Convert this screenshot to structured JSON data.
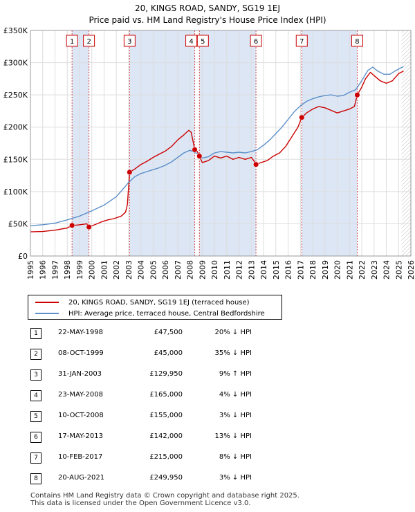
{
  "header": {
    "line1": "20, KINGS ROAD, SANDY, SG19 1EJ",
    "line2": "Price paid vs. HM Land Registry's House Price Index (HPI)"
  },
  "chart_data": {
    "type": "line",
    "title": "Price paid vs. HM Land Registry's House Price Index (HPI)",
    "ylim": [
      0,
      350000
    ],
    "xlim": [
      1995,
      2026
    ],
    "y_ticks": [
      0,
      50000,
      100000,
      150000,
      200000,
      250000,
      300000,
      350000
    ],
    "y_tick_labels": [
      "£0",
      "£50K",
      "£100K",
      "£150K",
      "£200K",
      "£250K",
      "£300K",
      "£350K"
    ],
    "x_ticks": [
      1995,
      1996,
      1997,
      1998,
      1999,
      2000,
      2001,
      2002,
      2003,
      2004,
      2005,
      2006,
      2007,
      2008,
      2009,
      2010,
      2011,
      2012,
      2013,
      2014,
      2015,
      2016,
      2017,
      2018,
      2019,
      2020,
      2021,
      2022,
      2023,
      2024,
      2025,
      2026
    ],
    "colors": {
      "property": "#cc0000",
      "hpi": "#5b8fc9",
      "band": "#dce6f5",
      "grid": "#dddddd",
      "marker_line": "#cc0000"
    },
    "series": [
      {
        "name": "20, KINGS ROAD, SANDY, SG19 1EJ (terraced house)",
        "key": "property",
        "points": [
          [
            1995.0,
            37500
          ],
          [
            1996.0,
            38000
          ],
          [
            1997.0,
            40000
          ],
          [
            1998.0,
            43500
          ],
          [
            1998.39,
            47500
          ],
          [
            1998.8,
            48000
          ],
          [
            1999.2,
            49000
          ],
          [
            1999.6,
            50000
          ],
          [
            1999.77,
            45000
          ],
          [
            2000.3,
            49000
          ],
          [
            2000.8,
            53000
          ],
          [
            2001.3,
            56000
          ],
          [
            2001.8,
            58000
          ],
          [
            2002.4,
            62000
          ],
          [
            2002.75,
            68000
          ],
          [
            2002.9,
            80000
          ],
          [
            2003.08,
            129950
          ],
          [
            2003.5,
            135000
          ],
          [
            2004.0,
            142000
          ],
          [
            2004.5,
            147000
          ],
          [
            2005.0,
            153000
          ],
          [
            2005.5,
            158000
          ],
          [
            2006.0,
            163000
          ],
          [
            2006.5,
            170000
          ],
          [
            2007.0,
            180000
          ],
          [
            2007.5,
            188000
          ],
          [
            2007.9,
            195000
          ],
          [
            2008.1,
            192000
          ],
          [
            2008.39,
            165000
          ],
          [
            2008.6,
            162000
          ],
          [
            2008.77,
            155000
          ],
          [
            2009.0,
            145000
          ],
          [
            2009.5,
            148000
          ],
          [
            2010.0,
            155000
          ],
          [
            2010.5,
            152000
          ],
          [
            2011.0,
            155000
          ],
          [
            2011.5,
            150000
          ],
          [
            2012.0,
            153000
          ],
          [
            2012.5,
            150000
          ],
          [
            2013.0,
            153000
          ],
          [
            2013.2,
            148000
          ],
          [
            2013.38,
            142000
          ],
          [
            2013.8,
            145000
          ],
          [
            2014.3,
            148000
          ],
          [
            2014.8,
            155000
          ],
          [
            2015.3,
            160000
          ],
          [
            2015.8,
            170000
          ],
          [
            2016.3,
            185000
          ],
          [
            2016.8,
            200000
          ],
          [
            2017.11,
            215000
          ],
          [
            2017.5,
            222000
          ],
          [
            2018.0,
            228000
          ],
          [
            2018.5,
            232000
          ],
          [
            2019.0,
            230000
          ],
          [
            2019.5,
            226000
          ],
          [
            2020.0,
            222000
          ],
          [
            2020.5,
            225000
          ],
          [
            2021.0,
            228000
          ],
          [
            2021.4,
            232000
          ],
          [
            2021.63,
            249950
          ],
          [
            2022.0,
            262000
          ],
          [
            2022.3,
            275000
          ],
          [
            2022.7,
            285000
          ],
          [
            2023.0,
            280000
          ],
          [
            2023.5,
            272000
          ],
          [
            2024.0,
            268000
          ],
          [
            2024.5,
            272000
          ],
          [
            2025.0,
            283000
          ],
          [
            2025.4,
            287000
          ]
        ]
      },
      {
        "name": "HPI: Average price, terraced house, Central Bedfordshire",
        "key": "hpi",
        "points": [
          [
            1995.0,
            47000
          ],
          [
            1996.0,
            48500
          ],
          [
            1997.0,
            51000
          ],
          [
            1998.0,
            56000
          ],
          [
            1999.0,
            62000
          ],
          [
            2000.0,
            70000
          ],
          [
            2001.0,
            79000
          ],
          [
            2002.0,
            92000
          ],
          [
            2002.5,
            103000
          ],
          [
            2003.0,
            114000
          ],
          [
            2003.5,
            123000
          ],
          [
            2004.0,
            128000
          ],
          [
            2004.5,
            131000
          ],
          [
            2005.0,
            134000
          ],
          [
            2005.5,
            137000
          ],
          [
            2006.0,
            141000
          ],
          [
            2006.5,
            146000
          ],
          [
            2007.0,
            153000
          ],
          [
            2007.5,
            160000
          ],
          [
            2008.0,
            164000
          ],
          [
            2008.5,
            160000
          ],
          [
            2009.0,
            152000
          ],
          [
            2009.5,
            154000
          ],
          [
            2010.0,
            160000
          ],
          [
            2010.5,
            162000
          ],
          [
            2011.0,
            161000
          ],
          [
            2011.5,
            160000
          ],
          [
            2012.0,
            161000
          ],
          [
            2012.5,
            160000
          ],
          [
            2013.0,
            162000
          ],
          [
            2013.5,
            165000
          ],
          [
            2014.0,
            172000
          ],
          [
            2014.5,
            180000
          ],
          [
            2015.0,
            190000
          ],
          [
            2015.5,
            200000
          ],
          [
            2016.0,
            212000
          ],
          [
            2016.5,
            224000
          ],
          [
            2017.0,
            233000
          ],
          [
            2017.5,
            240000
          ],
          [
            2018.0,
            244000
          ],
          [
            2018.5,
            247000
          ],
          [
            2019.0,
            249000
          ],
          [
            2019.5,
            250000
          ],
          [
            2020.0,
            248000
          ],
          [
            2020.5,
            249000
          ],
          [
            2021.0,
            254000
          ],
          [
            2021.5,
            258000
          ],
          [
            2022.0,
            272000
          ],
          [
            2022.5,
            288000
          ],
          [
            2022.9,
            293000
          ],
          [
            2023.3,
            287000
          ],
          [
            2023.8,
            282000
          ],
          [
            2024.3,
            282000
          ],
          [
            2024.8,
            288000
          ],
          [
            2025.2,
            292000
          ],
          [
            2025.4,
            294000
          ]
        ]
      }
    ],
    "sales": [
      {
        "n": "1",
        "x": 1998.39,
        "y": 47500
      },
      {
        "n": "2",
        "x": 1999.77,
        "y": 45000
      },
      {
        "n": "3",
        "x": 2003.08,
        "y": 129950
      },
      {
        "n": "4",
        "x": 2008.39,
        "y": 165000
      },
      {
        "n": "5",
        "x": 2008.77,
        "y": 155000
      },
      {
        "n": "6",
        "x": 2013.38,
        "y": 142000
      },
      {
        "n": "7",
        "x": 2017.11,
        "y": 215000
      },
      {
        "n": "8",
        "x": 2021.63,
        "y": 249950
      }
    ],
    "shaded_periods": [
      [
        1998.39,
        1999.77
      ],
      [
        2003.08,
        2008.39
      ],
      [
        2008.77,
        2013.38
      ],
      [
        2017.11,
        2021.63
      ]
    ],
    "forecast_start": 2025.25
  },
  "legend": {
    "property": "20, KINGS ROAD, SANDY, SG19 1EJ (terraced house)",
    "hpi": "HPI: Average price, terraced house, Central Bedfordshire"
  },
  "transactions": [
    {
      "n": "1",
      "date": "22-MAY-1998",
      "price": "£47,500",
      "hpi": "20% ↓ HPI"
    },
    {
      "n": "2",
      "date": "08-OCT-1999",
      "price": "£45,000",
      "hpi": "35% ↓ HPI"
    },
    {
      "n": "3",
      "date": "31-JAN-2003",
      "price": "£129,950",
      "hpi": "9% ↑ HPI"
    },
    {
      "n": "4",
      "date": "23-MAY-2008",
      "price": "£165,000",
      "hpi": "4% ↓ HPI"
    },
    {
      "n": "5",
      "date": "10-OCT-2008",
      "price": "£155,000",
      "hpi": "3% ↓ HPI"
    },
    {
      "n": "6",
      "date": "17-MAY-2013",
      "price": "£142,000",
      "hpi": "13% ↓ HPI"
    },
    {
      "n": "7",
      "date": "10-FEB-2017",
      "price": "£215,000",
      "hpi": "8% ↓ HPI"
    },
    {
      "n": "8",
      "date": "20-AUG-2021",
      "price": "£249,950",
      "hpi": "3% ↓ HPI"
    }
  ],
  "footer": {
    "line1": "Contains HM Land Registry data © Crown copyright and database right 2025.",
    "line2": "This data is licensed under the Open Government Licence v3.0."
  }
}
